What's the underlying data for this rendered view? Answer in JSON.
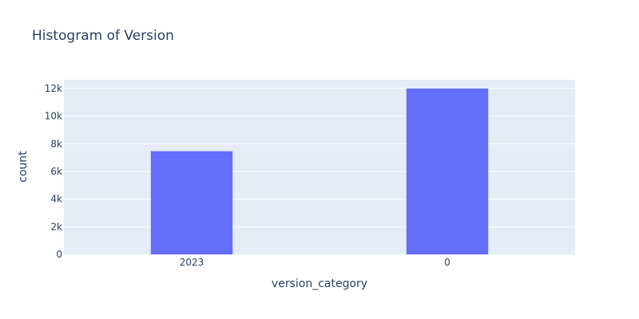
{
  "chart_data": {
    "type": "bar",
    "title": "Histogram of Version",
    "xlabel": "version_category",
    "ylabel": "count",
    "categories": [
      "2023",
      "0"
    ],
    "values": [
      7460,
      12000
    ],
    "ylim": [
      0,
      12630
    ],
    "yticks": [
      0,
      2000,
      4000,
      6000,
      8000,
      10000,
      12000
    ],
    "ytick_labels": [
      "0",
      "2k",
      "4k",
      "6k",
      "8k",
      "10k",
      "12k"
    ],
    "grid": true,
    "legend": "none",
    "colors": {
      "bar": "#636efa",
      "plot_background": "#e5ecf6",
      "grid": "#ffffff",
      "text": "#2a3f5f"
    }
  }
}
